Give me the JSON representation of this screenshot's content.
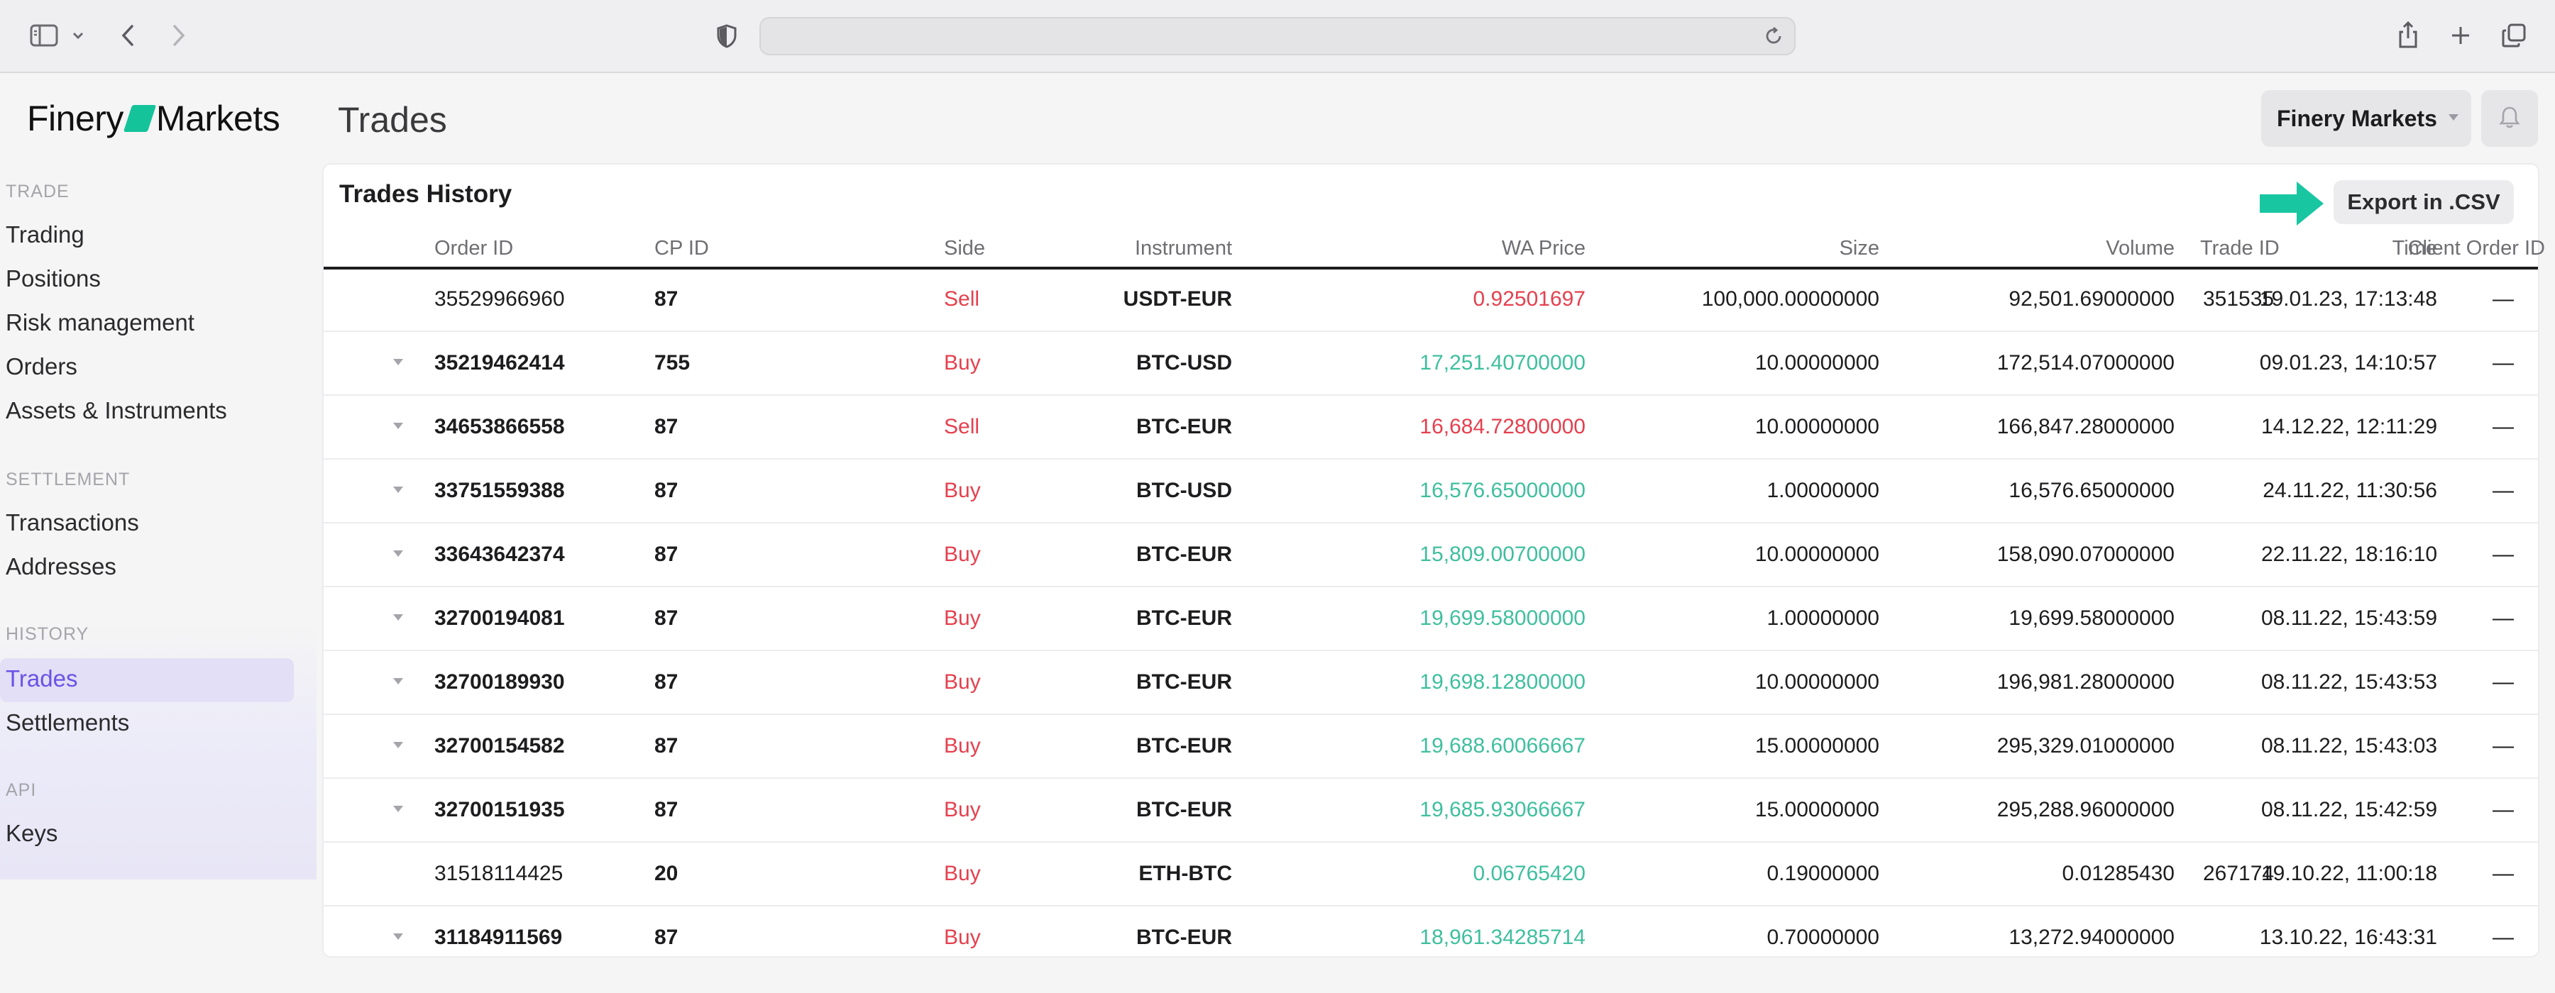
{
  "app": {
    "logo_left": "Finery",
    "logo_right": "Markets",
    "page_title": "Trades",
    "org_name": "Finery Markets"
  },
  "sidebar": {
    "sections": [
      {
        "heading": "TRADE",
        "items": [
          "Trading",
          "Positions",
          "Risk management",
          "Orders",
          "Assets & Instruments"
        ]
      },
      {
        "heading": "SETTLEMENT",
        "items": [
          "Transactions",
          "Addresses"
        ]
      },
      {
        "heading": "HISTORY",
        "items": [
          "Trades",
          "Settlements"
        ]
      },
      {
        "heading": "API",
        "items": [
          "Keys"
        ]
      }
    ],
    "active_item": "Trades"
  },
  "trades": {
    "title": "Trades History",
    "export_label": "Export in .CSV",
    "columns": [
      "Order ID",
      "CP ID",
      "Instrument",
      "Side",
      "WA Price",
      "Size",
      "Volume",
      "Time",
      "Trade ID",
      "Client Order ID"
    ],
    "rows": [
      {
        "expandable": false,
        "order_id": "35529966960",
        "cp_id": "87",
        "instrument": "USDT-EUR",
        "side": "Sell",
        "wa_price": "0.92501697",
        "size": "100,000.00000000",
        "volume": "92,501.69000000",
        "time": "19.01.23, 17:13:48",
        "trade_id": "351535",
        "client_order_id": "—"
      },
      {
        "expandable": true,
        "order_id": "35219462414",
        "cp_id": "755",
        "instrument": "BTC-USD",
        "side": "Buy",
        "wa_price": "17,251.40700000",
        "size": "10.00000000",
        "volume": "172,514.07000000",
        "time": "09.01.23, 14:10:57",
        "trade_id": "",
        "client_order_id": "—"
      },
      {
        "expandable": true,
        "order_id": "34653866558",
        "cp_id": "87",
        "instrument": "BTC-EUR",
        "side": "Sell",
        "wa_price": "16,684.72800000",
        "size": "10.00000000",
        "volume": "166,847.28000000",
        "time": "14.12.22, 12:11:29",
        "trade_id": "",
        "client_order_id": "—"
      },
      {
        "expandable": true,
        "order_id": "33751559388",
        "cp_id": "87",
        "instrument": "BTC-USD",
        "side": "Buy",
        "wa_price": "16,576.65000000",
        "size": "1.00000000",
        "volume": "16,576.65000000",
        "time": "24.11.22, 11:30:56",
        "trade_id": "",
        "client_order_id": "—"
      },
      {
        "expandable": true,
        "order_id": "33643642374",
        "cp_id": "87",
        "instrument": "BTC-EUR",
        "side": "Buy",
        "wa_price": "15,809.00700000",
        "size": "10.00000000",
        "volume": "158,090.07000000",
        "time": "22.11.22, 18:16:10",
        "trade_id": "",
        "client_order_id": "—"
      },
      {
        "expandable": true,
        "order_id": "32700194081",
        "cp_id": "87",
        "instrument": "BTC-EUR",
        "side": "Buy",
        "wa_price": "19,699.58000000",
        "size": "1.00000000",
        "volume": "19,699.58000000",
        "time": "08.11.22, 15:43:59",
        "trade_id": "",
        "client_order_id": "—"
      },
      {
        "expandable": true,
        "order_id": "32700189930",
        "cp_id": "87",
        "instrument": "BTC-EUR",
        "side": "Buy",
        "wa_price": "19,698.12800000",
        "size": "10.00000000",
        "volume": "196,981.28000000",
        "time": "08.11.22, 15:43:53",
        "trade_id": "",
        "client_order_id": "—"
      },
      {
        "expandable": true,
        "order_id": "32700154582",
        "cp_id": "87",
        "instrument": "BTC-EUR",
        "side": "Buy",
        "wa_price": "19,688.60066667",
        "size": "15.00000000",
        "volume": "295,329.01000000",
        "time": "08.11.22, 15:43:03",
        "trade_id": "",
        "client_order_id": "—"
      },
      {
        "expandable": true,
        "order_id": "32700151935",
        "cp_id": "87",
        "instrument": "BTC-EUR",
        "side": "Buy",
        "wa_price": "19,685.93066667",
        "size": "15.00000000",
        "volume": "295,288.96000000",
        "time": "08.11.22, 15:42:59",
        "trade_id": "",
        "client_order_id": "—"
      },
      {
        "expandable": false,
        "order_id": "31518114425",
        "cp_id": "20",
        "instrument": "ETH-BTC",
        "side": "Buy",
        "wa_price": "0.06765420",
        "size": "0.19000000",
        "volume": "0.01285430",
        "time": "19.10.22, 11:00:18",
        "trade_id": "267174",
        "client_order_id": "—"
      },
      {
        "expandable": true,
        "order_id": "31184911569",
        "cp_id": "87",
        "instrument": "BTC-EUR",
        "side": "Buy",
        "wa_price": "18,961.34285714",
        "size": "0.70000000",
        "volume": "13,272.94000000",
        "time": "13.10.22, 16:43:31",
        "trade_id": "",
        "client_order_id": "—"
      }
    ]
  },
  "colors": {
    "brand": "#14c39a",
    "sell": "#e5404e",
    "buy_price": "#3fbf9e",
    "active_nav": "#6a52e6"
  },
  "icons": [
    "sidebar-toggle-icon",
    "chevron-down-icon",
    "back-icon",
    "forward-icon",
    "shield-icon",
    "reload-icon",
    "share-icon",
    "new-tab-icon",
    "tabs-overview-icon",
    "bell-icon",
    "arrow-right-icon"
  ]
}
